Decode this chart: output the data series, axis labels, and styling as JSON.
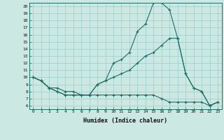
{
  "bg_color": "#cce8e2",
  "line_color": "#1a7068",
  "grid_color": "#99cccc",
  "xlim": [
    -0.5,
    23.5
  ],
  "ylim": [
    5.5,
    20.5
  ],
  "xticks": [
    0,
    1,
    2,
    3,
    4,
    5,
    6,
    7,
    8,
    9,
    10,
    11,
    12,
    13,
    14,
    15,
    16,
    17,
    18,
    19,
    20,
    21,
    22,
    23
  ],
  "yticks": [
    6,
    7,
    8,
    9,
    10,
    11,
    12,
    13,
    14,
    15,
    16,
    17,
    18,
    19,
    20
  ],
  "xlabel": "Humidex (Indice chaleur)",
  "line1_x": [
    0,
    1,
    2,
    3,
    4,
    5,
    6,
    7,
    8,
    9,
    10,
    11,
    12,
    13,
    14,
    15,
    16,
    17,
    18,
    19,
    20,
    21,
    22,
    23
  ],
  "line1_y": [
    10,
    9.5,
    8.5,
    8,
    7.5,
    7.5,
    7.5,
    7.5,
    9,
    9.5,
    12,
    12.5,
    13.5,
    16.5,
    17.5,
    20.5,
    20.5,
    19.5,
    15.5,
    10.5,
    8.5,
    8.0,
    6,
    6.5
  ],
  "line2_x": [
    0,
    1,
    2,
    3,
    4,
    5,
    6,
    7,
    8,
    9,
    10,
    11,
    12,
    13,
    14,
    15,
    16,
    17,
    18,
    19,
    20,
    21,
    22,
    23
  ],
  "line2_y": [
    10,
    9.5,
    8.5,
    8.5,
    8,
    8,
    7.5,
    7.5,
    9,
    9.5,
    10,
    10.5,
    11,
    12,
    13,
    13.5,
    14.5,
    15.5,
    15.5,
    10.5,
    8.5,
    8.0,
    6,
    6.5
  ],
  "line3_x": [
    0,
    1,
    2,
    3,
    4,
    5,
    6,
    7,
    8,
    9,
    10,
    11,
    12,
    13,
    14,
    15,
    16,
    17,
    18,
    19,
    20,
    21,
    22,
    23
  ],
  "line3_y": [
    10,
    9.5,
    8.5,
    8,
    7.5,
    7.5,
    7.5,
    7.5,
    7.5,
    7.5,
    7.5,
    7.5,
    7.5,
    7.5,
    7.5,
    7.5,
    7.0,
    6.5,
    6.5,
    6.5,
    6.5,
    6.5,
    6,
    6.5
  ]
}
